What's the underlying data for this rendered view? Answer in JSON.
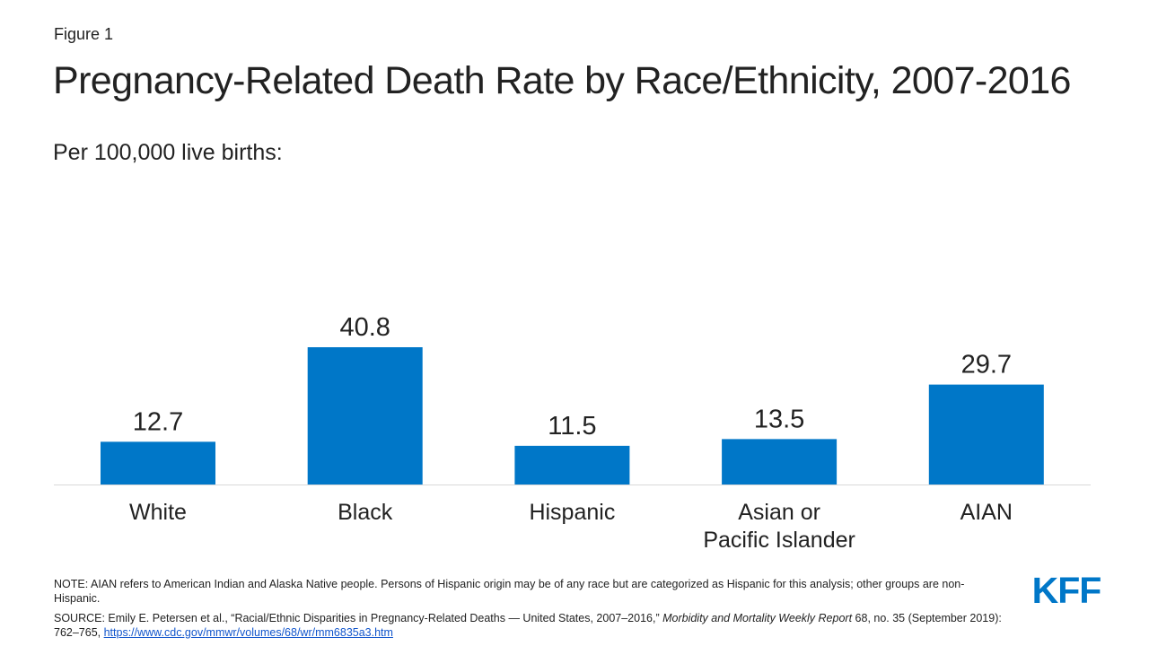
{
  "figure_label": "Figure 1",
  "colors": {
    "bar": "#0077C8",
    "text": "#222222",
    "axis": "#D9D9D9",
    "brand": "#0077C8",
    "link": "#1155CC"
  },
  "chart_data": {
    "type": "bar",
    "title": "Pregnancy-Related Death Rate by Race/Ethnicity, 2007-2016",
    "subtitle": "Per 100,000 live births:",
    "categories": [
      [
        "White"
      ],
      [
        "Black"
      ],
      [
        "Hispanic"
      ],
      [
        "Asian or",
        "Pacific Islander"
      ],
      [
        "AIAN"
      ]
    ],
    "values": [
      12.7,
      40.8,
      11.5,
      13.5,
      29.7
    ],
    "value_labels": [
      "12.7",
      "40.8",
      "11.5",
      "13.5",
      "29.7"
    ],
    "xlabel": "",
    "ylabel": "",
    "ylim": [
      0,
      40.8
    ],
    "grid": false
  },
  "note": "NOTE: AIAN  refers to American Indian and Alaska Native people. Persons of Hispanic origin may be of any race but are categorized as Hispanic for this analysis; other groups are non-Hispanic.",
  "source": {
    "prefix": "SOURCE:  Emily E. Petersen et al., “Racial/Ethnic Disparities in Pregnancy-Related Deaths — United States, 2007–2016,” ",
    "journal": "Morbidity and Mortality Weekly Report",
    "suffix": " 68, no. 35 (September 2019): 762–765, ",
    "link_text": "https://www.cdc.gov/mmwr/volumes/68/wr/mm6835a3.htm"
  },
  "logo": {
    "text": "KFF",
    "icon": "kff-logo-icon"
  }
}
